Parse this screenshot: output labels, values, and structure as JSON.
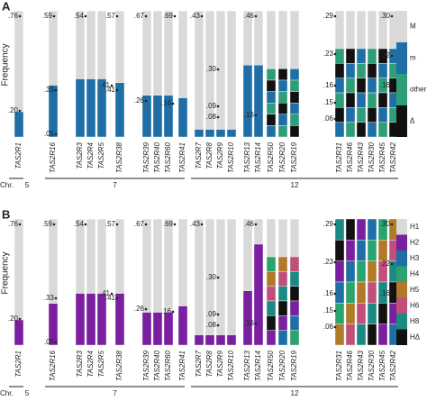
{
  "y_label": "Frequency",
  "chromosome_prefix": "Chr.",
  "chromosomes": [
    "5",
    "7",
    "12"
  ],
  "genes": [
    "TAS2R1",
    "TAS2R16",
    "TAS2R3",
    "TAS2R4",
    "TAS2R5",
    "TAS2R38",
    "TAS2R39",
    "TAS2R40",
    "TAS2R60",
    "TAS2R41",
    "TAS2R7",
    "TAS2R8",
    "TAS2R9",
    "TAS2R10",
    "TAS2R13",
    "TAS2R14",
    "TAS2R50",
    "TAS2R20",
    "TAS2R19",
    "TAS2R31",
    "TAS2R46",
    "TAS2R43",
    "TAS2R30",
    "TAS2R45",
    "TAS2R42"
  ],
  "panels": [
    {
      "label": "A",
      "frequency_labels": [
        ".76",
        ".20",
        ".59",
        ".33",
        ".05",
        ".54",
        ".41",
        ".57",
        ".41",
        ".67",
        ".26",
        ".69",
        ".16",
        ".43",
        ".30",
        ".09",
        ".08",
        ".46",
        ".16",
        ".29",
        ".23",
        ".16",
        ".15",
        ".06",
        ".30",
        ".22",
        ".16"
      ],
      "legend": [
        {
          "name": "M",
          "color": "#d9d9d9"
        },
        {
          "name": "m",
          "color": "#1f6fa6"
        },
        {
          "name": "other",
          "color": "#2e9e78"
        },
        {
          "name": "Δ",
          "color": "#111111"
        }
      ]
    },
    {
      "label": "B",
      "frequency_labels": [
        ".76",
        ".20",
        ".59",
        ".33",
        ".05",
        ".54",
        ".41",
        ".57",
        ".41",
        ".67",
        ".26",
        ".69",
        ".16",
        ".43",
        ".30",
        ".09",
        ".08",
        ".46",
        ".16",
        ".29",
        ".23",
        ".16",
        ".15",
        ".06",
        ".30",
        ".22",
        ".16"
      ],
      "legend": [
        {
          "name": "H1",
          "color": "#d9d9d9"
        },
        {
          "name": "H2",
          "color": "#7a1fa0"
        },
        {
          "name": "H3",
          "color": "#1f6fa6"
        },
        {
          "name": "H4",
          "color": "#2aa36f"
        },
        {
          "name": "H5",
          "color": "#b07a2a"
        },
        {
          "name": "H6",
          "color": "#c0507a"
        },
        {
          "name": "H8",
          "color": "#1b8a84"
        },
        {
          "name": "HΔ",
          "color": "#111111"
        }
      ]
    }
  ]
}
